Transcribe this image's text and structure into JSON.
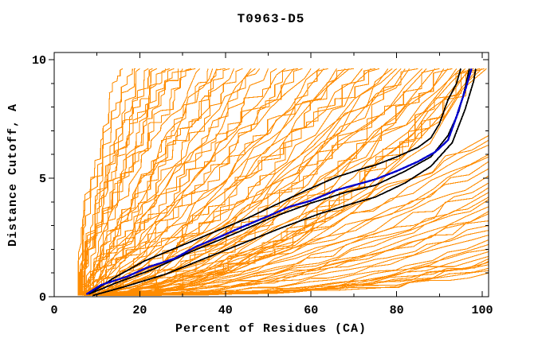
{
  "chart_data": {
    "type": "line",
    "title": "T0963-D5",
    "xlabel": "Percent of Residues (CA)",
    "ylabel": "Distance Cutoff, A",
    "xlim": [
      0,
      101.5
    ],
    "ylim": [
      0,
      10.3
    ],
    "x_ticks_labeled": [
      0,
      20,
      40,
      60,
      80,
      100
    ],
    "x_ticks_minor": [
      10,
      30,
      50,
      70,
      90
    ],
    "y_ticks_labeled": [
      0,
      5,
      10
    ],
    "y_ticks_minor": [
      1,
      2,
      3,
      4,
      6,
      7,
      8,
      9
    ],
    "grid": "off",
    "legend": "none",
    "colors": {
      "model_pool": "#ff8c00",
      "highlight_models": "#000000",
      "selected_model": "#0000cc",
      "axis": "#000000",
      "background": "#ffffff"
    },
    "series": [
      {
        "name": "selected-model-blue",
        "color_key": "selected_model",
        "width": 2.4,
        "points": [
          [
            7.5,
            0.1
          ],
          [
            11,
            0.5
          ],
          [
            17,
            0.85
          ],
          [
            22,
            1.25
          ],
          [
            28,
            1.6
          ],
          [
            33,
            2.1
          ],
          [
            39,
            2.55
          ],
          [
            44,
            2.95
          ],
          [
            50,
            3.4
          ],
          [
            55,
            3.8
          ],
          [
            60,
            4.05
          ],
          [
            66,
            4.5
          ],
          [
            72,
            4.8
          ],
          [
            75,
            4.95
          ],
          [
            80,
            5.3
          ],
          [
            85,
            5.7
          ],
          [
            89,
            6.1
          ],
          [
            92,
            6.6
          ],
          [
            94,
            7.6
          ],
          [
            96,
            8.7
          ],
          [
            97.5,
            9.62
          ]
        ]
      },
      {
        "name": "highlight-model-black-upper",
        "color_key": "highlight_models",
        "width": 1.8,
        "points": [
          [
            8,
            0.1
          ],
          [
            14,
            0.8
          ],
          [
            21,
            1.5
          ],
          [
            29,
            2.1
          ],
          [
            37,
            2.7
          ],
          [
            45,
            3.3
          ],
          [
            52,
            3.9
          ],
          [
            59,
            4.5
          ],
          [
            66,
            5.05
          ],
          [
            72,
            5.4
          ],
          [
            75,
            5.55
          ],
          [
            80,
            5.9
          ],
          [
            85,
            6.3
          ],
          [
            88,
            6.7
          ],
          [
            90,
            7.3
          ],
          [
            92,
            8.3
          ],
          [
            94,
            9.0
          ],
          [
            95,
            9.62
          ]
        ]
      },
      {
        "name": "highlight-model-black-middle",
        "color_key": "highlight_models",
        "width": 1.8,
        "points": [
          [
            8,
            0.1
          ],
          [
            14,
            0.55
          ],
          [
            23,
            1.15
          ],
          [
            32,
            1.9
          ],
          [
            42,
            2.65
          ],
          [
            51,
            3.35
          ],
          [
            60,
            3.95
          ],
          [
            68,
            4.4
          ],
          [
            75,
            4.7
          ],
          [
            82,
            5.3
          ],
          [
            88,
            5.9
          ],
          [
            92,
            6.8
          ],
          [
            94.5,
            7.8
          ],
          [
            96,
            8.8
          ],
          [
            97,
            9.62
          ]
        ]
      },
      {
        "name": "highlight-model-black-lower",
        "color_key": "highlight_models",
        "width": 1.8,
        "points": [
          [
            9,
            0.05
          ],
          [
            17,
            0.45
          ],
          [
            26,
            0.95
          ],
          [
            35,
            1.6
          ],
          [
            44,
            2.25
          ],
          [
            53,
            2.9
          ],
          [
            62,
            3.5
          ],
          [
            70,
            3.95
          ],
          [
            75,
            4.2
          ],
          [
            82,
            4.8
          ],
          [
            88,
            5.5
          ],
          [
            93,
            6.5
          ],
          [
            96,
            7.9
          ],
          [
            98,
            9.1
          ],
          [
            98.5,
            9.62
          ]
        ]
      }
    ],
    "pool_curves": {
      "description": "Ensemble of server-model GDT curves (orange). Each spec is [mode, start_pct, end, shape_k, seed, step]; mode 0 = curve rises to 9.62 A reaching top at end (percent), mode 1 = curve runs to right border ending at cutoff end (A).",
      "color_key": "model_pool",
      "width": 1.1,
      "specs": [
        [
          0,
          5.5,
          16,
          0.55,
          1,
          1
        ],
        [
          0,
          6,
          18,
          0.6,
          2,
          1
        ],
        [
          0,
          6.5,
          20,
          0.65,
          3,
          1
        ],
        [
          0,
          7,
          22,
          0.6,
          4,
          1
        ],
        [
          0,
          5.8,
          24,
          0.7,
          5,
          1
        ],
        [
          0,
          6.2,
          26,
          0.68,
          6,
          1
        ],
        [
          0,
          7.5,
          28,
          0.72,
          7,
          1
        ],
        [
          0,
          6.8,
          30,
          0.66,
          8,
          1
        ],
        [
          0,
          5.6,
          19,
          0.5,
          9,
          1
        ],
        [
          0,
          7.2,
          23,
          0.62,
          10,
          1
        ],
        [
          0,
          6.4,
          27,
          0.58,
          11,
          1
        ],
        [
          0,
          8,
          29,
          0.75,
          12,
          1
        ],
        [
          0,
          6,
          32,
          0.8,
          13,
          1
        ],
        [
          0,
          7,
          34,
          0.75,
          14,
          0
        ],
        [
          0,
          8,
          36,
          0.9,
          15,
          1
        ],
        [
          0,
          6.5,
          38,
          0.85,
          16,
          0
        ],
        [
          0,
          7.5,
          40,
          0.95,
          17,
          1
        ],
        [
          0,
          8.5,
          42,
          0.8,
          18,
          0
        ],
        [
          0,
          6.2,
          44,
          1.0,
          19,
          1
        ],
        [
          0,
          7.8,
          46,
          0.9,
          20,
          0
        ],
        [
          0,
          8.2,
          48,
          1.05,
          21,
          1
        ],
        [
          0,
          6.6,
          50,
          0.95,
          22,
          0
        ],
        [
          0,
          7.4,
          52,
          1.1,
          23,
          1
        ],
        [
          0,
          8.8,
          54,
          1.0,
          24,
          0
        ],
        [
          0,
          5.9,
          33,
          0.7,
          25,
          1
        ],
        [
          0,
          7.1,
          37,
          0.88,
          26,
          0
        ],
        [
          0,
          8.4,
          41,
          0.78,
          27,
          1
        ],
        [
          0,
          6.9,
          47,
          1.02,
          28,
          0
        ],
        [
          0,
          6,
          56,
          1.1,
          29,
          0
        ],
        [
          0,
          7,
          58,
          1.2,
          30,
          1
        ],
        [
          0,
          8,
          60,
          1.0,
          31,
          0
        ],
        [
          0,
          9,
          62,
          1.3,
          32,
          0
        ],
        [
          0,
          6.5,
          64,
          1.15,
          33,
          1
        ],
        [
          0,
          7.5,
          66,
          1.25,
          34,
          0
        ],
        [
          0,
          8.5,
          68,
          1.05,
          35,
          0
        ],
        [
          0,
          9.5,
          70,
          1.35,
          36,
          1
        ],
        [
          0,
          6.8,
          72,
          1.2,
          37,
          0
        ],
        [
          0,
          7.8,
          74,
          1.4,
          38,
          0
        ],
        [
          0,
          8.8,
          76,
          1.1,
          39,
          1
        ],
        [
          0,
          9.2,
          78,
          1.45,
          40,
          0
        ],
        [
          0,
          7.2,
          80,
          1.3,
          41,
          0
        ],
        [
          0,
          6.3,
          57,
          0.95,
          42,
          1
        ],
        [
          0,
          8.1,
          63,
          1.18,
          43,
          0
        ],
        [
          0,
          9.4,
          69,
          1.28,
          44,
          0
        ],
        [
          0,
          7.6,
          75,
          1.38,
          45,
          1
        ],
        [
          0,
          8.6,
          79,
          1.48,
          46,
          0
        ],
        [
          0,
          7,
          81,
          1.5,
          47,
          0
        ],
        [
          0,
          8,
          83,
          1.35,
          48,
          0
        ],
        [
          0,
          9,
          85,
          1.6,
          49,
          1
        ],
        [
          0,
          7.5,
          87,
          1.45,
          50,
          0
        ],
        [
          0,
          8.5,
          89,
          1.7,
          51,
          0
        ],
        [
          0,
          9.5,
          91,
          1.55,
          52,
          0
        ],
        [
          0,
          7.2,
          93,
          1.75,
          53,
          1
        ],
        [
          0,
          8.2,
          95,
          1.6,
          54,
          0
        ],
        [
          0,
          9.2,
          96,
          1.8,
          55,
          0
        ],
        [
          0,
          6.9,
          82,
          1.4,
          56,
          0
        ],
        [
          0,
          7.9,
          86,
          1.65,
          57,
          0
        ],
        [
          0,
          8.9,
          90,
          1.5,
          58,
          1
        ],
        [
          0,
          9.6,
          94,
          1.72,
          59,
          0
        ],
        [
          0,
          7.4,
          92,
          1.58,
          60,
          0
        ],
        [
          0,
          8,
          97,
          1.9,
          61,
          0
        ],
        [
          0,
          9,
          98,
          2.1,
          62,
          1
        ],
        [
          0,
          10,
          99,
          2.0,
          63,
          0
        ],
        [
          0,
          8.5,
          100,
          2.2,
          64,
          0
        ],
        [
          0,
          9.5,
          100.5,
          1.95,
          65,
          1
        ],
        [
          0,
          10.5,
          101,
          2.3,
          66,
          0
        ],
        [
          0,
          9.8,
          97.5,
          2.05,
          67,
          0
        ],
        [
          0,
          10.2,
          99.5,
          2.15,
          68,
          1
        ],
        [
          1,
          8,
          6.8,
          1.4,
          69,
          0
        ],
        [
          1,
          9,
          6.4,
          1.5,
          70,
          0
        ],
        [
          1,
          10,
          6.0,
          1.3,
          71,
          0
        ],
        [
          1,
          8.5,
          5.7,
          1.6,
          72,
          0
        ],
        [
          1,
          9.5,
          5.4,
          1.45,
          73,
          0
        ],
        [
          1,
          10.5,
          5.1,
          1.7,
          74,
          0
        ],
        [
          1,
          9.2,
          4.8,
          1.55,
          75,
          0
        ],
        [
          1,
          10.8,
          4.6,
          1.75,
          76,
          0
        ],
        [
          1,
          9.8,
          6.6,
          1.35,
          77,
          0
        ],
        [
          1,
          8.8,
          5.9,
          1.65,
          78,
          0
        ],
        [
          1,
          9,
          4.4,
          1.8,
          79,
          0
        ],
        [
          1,
          10,
          4.1,
          1.9,
          80,
          0
        ],
        [
          1,
          11,
          3.8,
          2.0,
          81,
          0
        ],
        [
          1,
          9.5,
          3.5,
          2.1,
          82,
          0
        ],
        [
          1,
          10.5,
          3.2,
          1.7,
          83,
          0
        ],
        [
          1,
          11.5,
          3.0,
          2.2,
          84,
          0
        ],
        [
          1,
          10.2,
          2.8,
          1.85,
          85,
          0
        ],
        [
          1,
          9.8,
          2.6,
          2.3,
          86,
          0
        ],
        [
          1,
          10.8,
          4.2,
          1.75,
          87,
          0
        ],
        [
          1,
          11.2,
          3.6,
          2.05,
          88,
          0
        ],
        [
          1,
          10,
          2.4,
          2.4,
          89,
          0
        ],
        [
          1,
          11,
          2.2,
          2.6,
          90,
          0
        ],
        [
          1,
          12,
          2.0,
          2.8,
          91,
          0
        ],
        [
          1,
          10.5,
          1.9,
          3.0,
          92,
          0
        ],
        [
          1,
          11.5,
          1.7,
          2.5,
          93,
          0
        ],
        [
          1,
          12.5,
          1.6,
          3.2,
          94,
          0
        ],
        [
          1,
          11.2,
          1.5,
          2.7,
          95,
          0
        ],
        [
          1,
          12.2,
          1.35,
          2.9,
          96,
          0
        ],
        [
          1,
          13,
          1.2,
          3.1,
          97,
          0
        ],
        [
          1,
          11.8,
          1.1,
          2.6,
          98,
          0
        ],
        [
          1,
          12.8,
          1.0,
          3.0,
          99,
          0
        ],
        [
          1,
          13.5,
          1.45,
          2.8,
          100,
          0
        ]
      ]
    }
  }
}
